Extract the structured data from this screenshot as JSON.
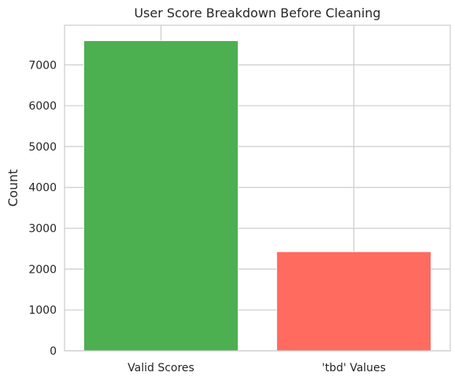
{
  "chart_data": {
    "type": "bar",
    "title": "User Score Breakdown Before Cleaning",
    "xlabel": "",
    "ylabel": "Count",
    "categories": [
      "Valid Scores",
      "'tbd' Values"
    ],
    "values": [
      7590,
      2425
    ],
    "colors": [
      "#4caf50",
      "#ff6b5f"
    ],
    "ylim": [
      0,
      7970
    ],
    "yticks": [
      0,
      1000,
      2000,
      3000,
      4000,
      5000,
      6000,
      7000
    ],
    "grid": true,
    "legend": "none"
  }
}
